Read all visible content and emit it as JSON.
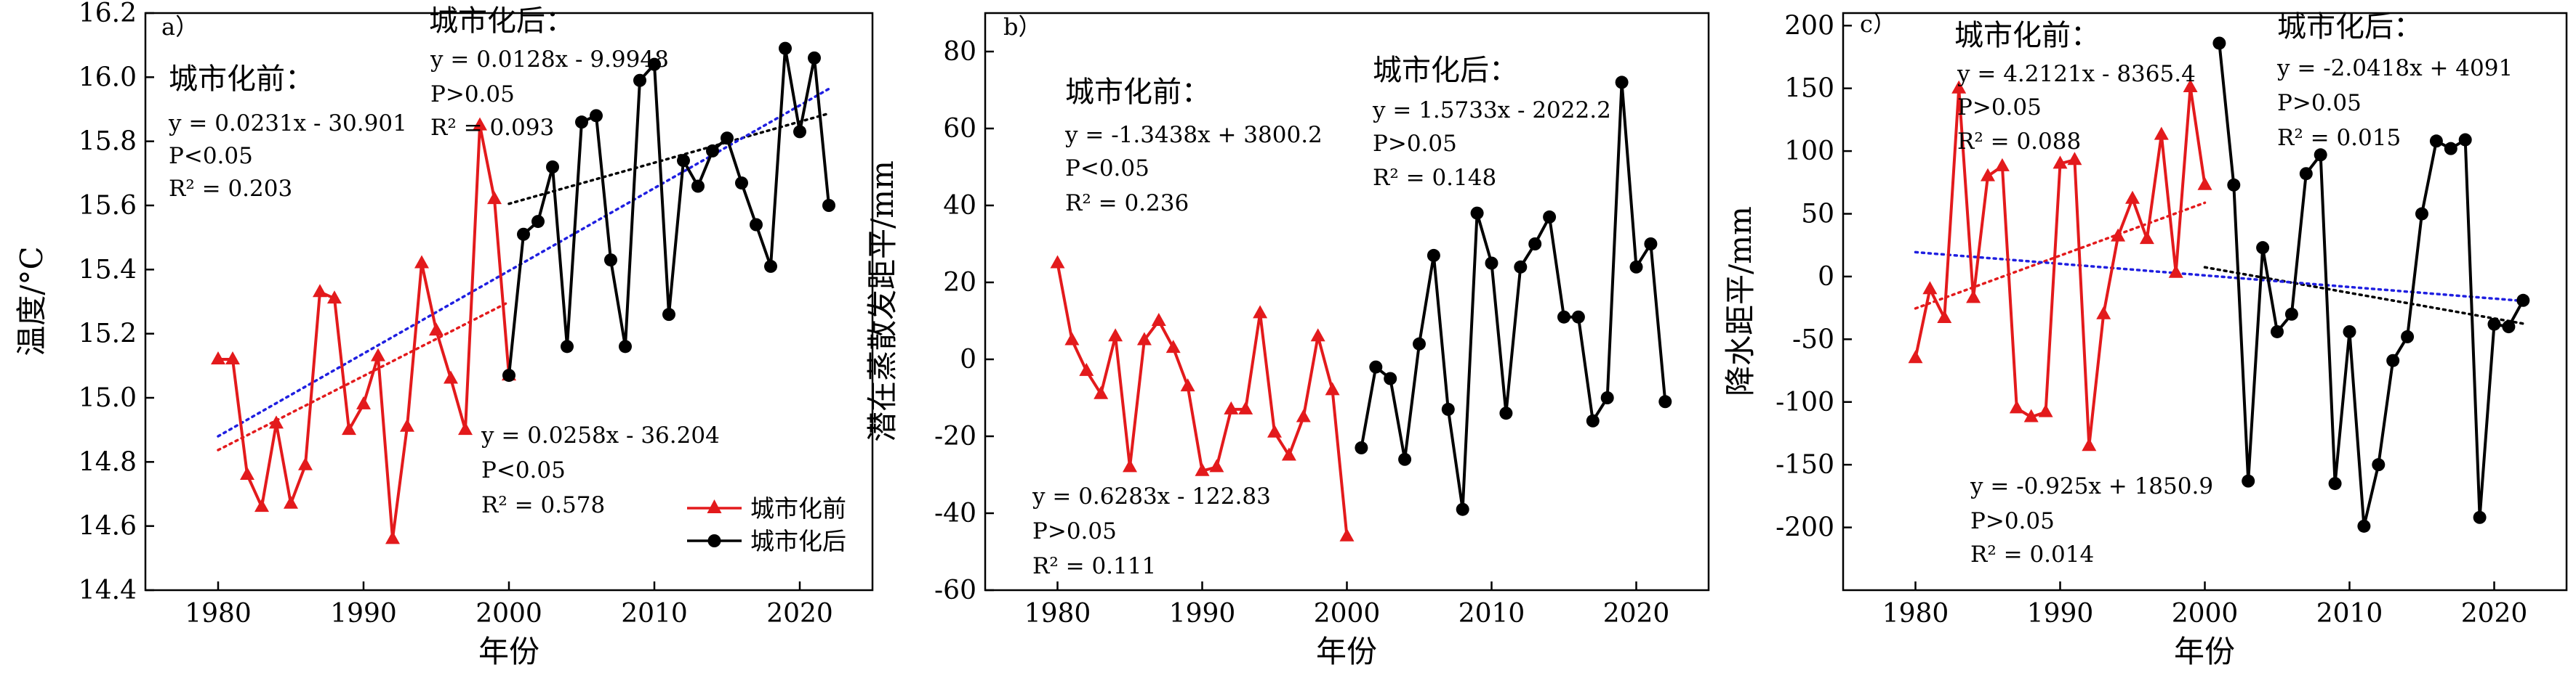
{
  "chart_data": [
    {
      "type": "line",
      "panel_label": "a）",
      "xlabel": "年份",
      "ylabel": "温度/°C",
      "xlim": [
        1975,
        2025
      ],
      "ylim": [
        14.4,
        16.2
      ],
      "x_ticks": [
        1980,
        1990,
        2000,
        2010,
        2020
      ],
      "y_ticks": [
        14.4,
        14.6,
        14.8,
        15.0,
        15.2,
        15.4,
        15.6,
        15.8,
        16.0,
        16.2
      ],
      "y_decimals": 1,
      "series": [
        {
          "name": "城市化前",
          "color": "#e31a1c",
          "marker": "triangle",
          "x": [
            1980,
            1981,
            1982,
            1983,
            1984,
            1985,
            1986,
            1987,
            1988,
            1989,
            1990,
            1991,
            1992,
            1993,
            1994,
            1995,
            1996,
            1997,
            1998,
            1999,
            2000
          ],
          "y": [
            15.12,
            15.12,
            14.76,
            14.66,
            14.92,
            14.67,
            14.79,
            15.33,
            15.31,
            14.9,
            14.98,
            15.13,
            14.56,
            14.91,
            15.42,
            15.21,
            15.06,
            14.9,
            15.85,
            15.62,
            15.07
          ]
        },
        {
          "name": "城市化后",
          "color": "#000000",
          "marker": "circle",
          "x": [
            2000,
            2001,
            2002,
            2003,
            2004,
            2005,
            2006,
            2007,
            2008,
            2009,
            2010,
            2011,
            2012,
            2013,
            2014,
            2015,
            2016,
            2017,
            2018,
            2019,
            2020,
            2021,
            2022
          ],
          "y": [
            15.07,
            15.51,
            15.55,
            15.72,
            15.16,
            15.86,
            15.88,
            15.43,
            15.16,
            15.99,
            16.04,
            15.26,
            15.74,
            15.66,
            15.77,
            15.81,
            15.67,
            15.54,
            15.41,
            16.09,
            15.83,
            16.06,
            15.6
          ]
        }
      ],
      "trendlines": [
        {
          "color": "#e31a1c",
          "slope": 0.0231,
          "intercept": -30.901,
          "x_range": [
            1980,
            2000
          ]
        },
        {
          "color": "#000000",
          "slope": 0.0128,
          "intercept": -9.9948,
          "x_range": [
            2000,
            2022
          ]
        },
        {
          "color": "#1f1fe0",
          "slope": 0.0258,
          "intercept": -36.204,
          "x_range": [
            1980,
            2022
          ]
        }
      ],
      "annotations": [
        {
          "lines": [
            "城市化前：",
            "y = 0.0231x - 30.901",
            "P<0.05",
            "R² = 0.203"
          ]
        },
        {
          "lines": [
            "城市化后：",
            "y = 0.0128x - 9.9948",
            "P>0.05",
            "R² = 0.093"
          ]
        },
        {
          "lines": [
            "y = 0.0258x - 36.204",
            "P<0.05",
            "R² = 0.578"
          ]
        }
      ],
      "legend": [
        {
          "label": "城市化前",
          "color": "#e31a1c",
          "marker": "triangle"
        },
        {
          "label": "城市化后",
          "color": "#000000",
          "marker": "circle"
        }
      ],
      "legend_position": "bottom-right"
    },
    {
      "type": "line",
      "panel_label": "b）",
      "xlabel": "年份",
      "ylabel": "潜在蒸散发距平/mm",
      "xlim": [
        1975,
        2025
      ],
      "ylim": [
        -60,
        90
      ],
      "x_ticks": [
        1980,
        1990,
        2000,
        2010,
        2020
      ],
      "y_ticks": [
        -60,
        -40,
        -20,
        0,
        20,
        40,
        60,
        80
      ],
      "y_decimals": 0,
      "series": [
        {
          "name": "城市化前",
          "color": "#e31a1c",
          "marker": "triangle",
          "x": [
            1980,
            1981,
            1982,
            1983,
            1984,
            1985,
            1986,
            1987,
            1988,
            1989,
            1990,
            1991,
            1992,
            1993,
            1994,
            1995,
            1996,
            1997,
            1998,
            1999,
            2000
          ],
          "y": [
            25,
            5,
            -3,
            -9,
            6,
            -28,
            5,
            10,
            3,
            -7,
            -29,
            -28,
            -13,
            -13,
            12,
            -19,
            -25,
            -15,
            6,
            -8,
            -46
          ]
        },
        {
          "name": "城市化后",
          "color": "#000000",
          "marker": "circle",
          "x": [
            2001,
            2002,
            2003,
            2004,
            2005,
            2006,
            2007,
            2008,
            2009,
            2010,
            2011,
            2012,
            2013,
            2014,
            2015,
            2016,
            2017,
            2018,
            2019,
            2020,
            2021,
            2022
          ],
          "y": [
            -23,
            -2,
            -5,
            -26,
            4,
            27,
            -13,
            -39,
            38,
            25,
            -14,
            24,
            30,
            37,
            11,
            11,
            -16,
            -10,
            72,
            24,
            30,
            -11
          ]
        }
      ],
      "trendlines": [
        {
          "color": "#e31a1c",
          "slope": -1.3438,
          "intercept": 3800.2,
          "x_range": [
            1980,
            2000
          ]
        },
        {
          "color": "#000000",
          "slope": 1.5733,
          "intercept": -2022.2,
          "x_range": [
            2000,
            2022
          ]
        },
        {
          "color": "#1f1fe0",
          "slope": 0.6283,
          "intercept": -122.83,
          "x_range": [
            1980,
            2022
          ]
        }
      ],
      "annotations": [
        {
          "lines": [
            "城市化前：",
            "y = -1.3438x + 3800.2",
            "P<0.05",
            "R² = 0.236"
          ]
        },
        {
          "lines": [
            "城市化后：",
            "y = 1.5733x - 2022.2",
            "P>0.05",
            "R² = 0.148"
          ]
        },
        {
          "lines": [
            "y = 0.6283x - 122.83",
            "P>0.05",
            "R² = 0.111"
          ]
        }
      ]
    },
    {
      "type": "line",
      "panel_label": "c）",
      "xlabel": "年份",
      "ylabel": "降水距平/mm",
      "xlim": [
        1975,
        2025
      ],
      "ylim": [
        -250,
        210
      ],
      "x_ticks": [
        1980,
        1990,
        2000,
        2010,
        2020
      ],
      "y_ticks": [
        -200,
        -150,
        -100,
        -50,
        0,
        50,
        100,
        150,
        200
      ],
      "y_decimals": 0,
      "series": [
        {
          "name": "城市化前",
          "color": "#e31a1c",
          "marker": "triangle",
          "x": [
            1980,
            1981,
            1982,
            1983,
            1984,
            1985,
            1986,
            1987,
            1988,
            1989,
            1990,
            1991,
            1992,
            1993,
            1994,
            1995,
            1996,
            1997,
            1998,
            1999,
            2000
          ],
          "y": [
            -65,
            -10,
            -33,
            150,
            -17,
            80,
            88,
            -105,
            -112,
            -108,
            90,
            93,
            -135,
            -30,
            32,
            62,
            30,
            113,
            3,
            151,
            73
          ]
        },
        {
          "name": "城市化后",
          "color": "#000000",
          "marker": "circle",
          "x": [
            2001,
            2002,
            2003,
            2004,
            2005,
            2006,
            2007,
            2008,
            2009,
            2010,
            2011,
            2012,
            2013,
            2014,
            2015,
            2016,
            2017,
            2018,
            2019,
            2020,
            2021,
            2022
          ],
          "y": [
            186,
            73,
            -163,
            23,
            -44,
            -30,
            82,
            97,
            -165,
            -44,
            -199,
            -150,
            -67,
            -48,
            50,
            108,
            102,
            109,
            -192,
            -38,
            -40,
            -19
          ]
        }
      ],
      "trendlines": [
        {
          "color": "#e31a1c",
          "slope": 4.2121,
          "intercept": -8365.4,
          "x_range": [
            1980,
            2000
          ]
        },
        {
          "color": "#000000",
          "slope": -2.0418,
          "intercept": 4091,
          "x_range": [
            2000,
            2022
          ]
        },
        {
          "color": "#1f1fe0",
          "slope": -0.925,
          "intercept": 1850.9,
          "x_range": [
            1980,
            2022
          ]
        }
      ],
      "annotations": [
        {
          "lines": [
            "城市化前：",
            "y = 4.2121x - 8365.4",
            "P>0.05",
            "R² = 0.088"
          ]
        },
        {
          "lines": [
            "城市化后：",
            "y = -2.0418x + 4091",
            "P>0.05",
            "R² = 0.015"
          ]
        },
        {
          "lines": [
            "y = -0.925x + 1850.9",
            "P>0.05",
            "R² = 0.014"
          ]
        }
      ]
    }
  ]
}
